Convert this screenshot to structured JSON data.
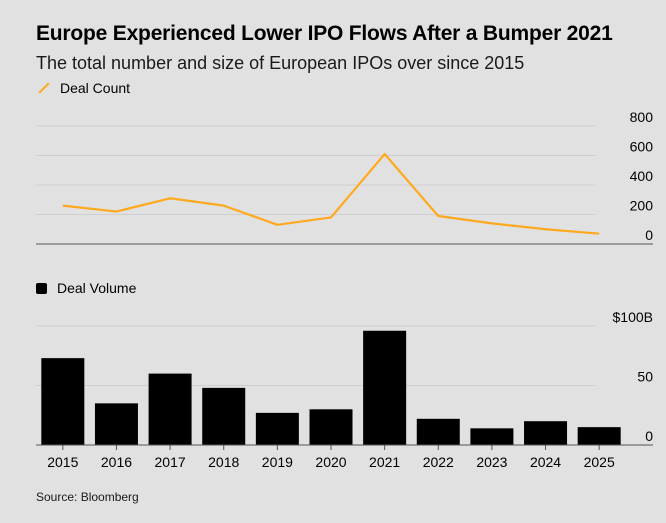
{
  "title": "Europe Experienced Lower IPO Flows After a Bumper 2021",
  "subtitle": "The total number and size of European IPOs over since 2015",
  "source": "Source: Bloomberg",
  "colors": {
    "line": "#ffa91f",
    "bar": "#000000",
    "grid": "#cfcfcf",
    "background": "#e1e1e1"
  },
  "chart_data": [
    {
      "type": "line",
      "title": "Deal Count",
      "legend": "Deal Count",
      "categories": [
        "2015",
        "2016",
        "2017",
        "2018",
        "2019",
        "2020",
        "2021",
        "2022",
        "2023",
        "2024",
        "2025"
      ],
      "values": [
        260,
        220,
        310,
        260,
        130,
        180,
        610,
        190,
        140,
        100,
        70
      ],
      "ylim": [
        0,
        800
      ],
      "yticks": [
        0,
        200,
        400,
        600,
        800
      ],
      "ytick_labels": [
        "0",
        "200",
        "400",
        "600",
        "800"
      ]
    },
    {
      "type": "bar",
      "title": "Deal Volume",
      "legend": "Deal Volume",
      "categories": [
        "2015",
        "2016",
        "2017",
        "2018",
        "2019",
        "2020",
        "2021",
        "2022",
        "2023",
        "2024",
        "2025"
      ],
      "values": [
        73,
        35,
        60,
        48,
        27,
        30,
        96,
        22,
        14,
        20,
        15
      ],
      "ylim": [
        0,
        100
      ],
      "yticks": [
        0,
        50,
        100
      ],
      "ytick_labels": [
        "0",
        "50",
        "$100B"
      ]
    }
  ]
}
